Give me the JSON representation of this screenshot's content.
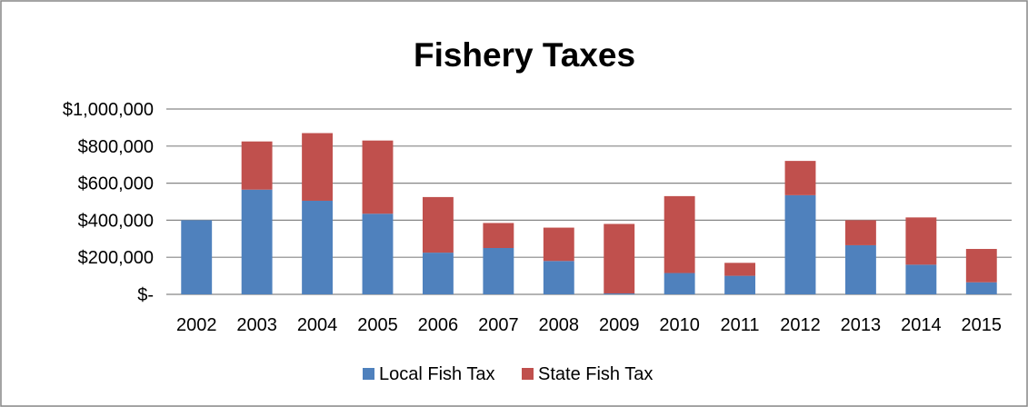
{
  "chart_data": {
    "type": "bar",
    "stacked": true,
    "title": "Fishery Taxes",
    "xlabel": "",
    "ylabel": "",
    "categories": [
      "2002",
      "2003",
      "2004",
      "2005",
      "2006",
      "2007",
      "2008",
      "2009",
      "2010",
      "2011",
      "2012",
      "2013",
      "2014",
      "2015"
    ],
    "series": [
      {
        "name": "Local Fish Tax",
        "color": "#4f81bd",
        "values": [
          400000,
          565000,
          505000,
          435000,
          225000,
          250000,
          180000,
          5000,
          115000,
          100000,
          535000,
          265000,
          160000,
          65000
        ]
      },
      {
        "name": "State Fish Tax",
        "color": "#c0504d",
        "values": [
          0,
          260000,
          365000,
          395000,
          300000,
          135000,
          180000,
          375000,
          415000,
          70000,
          185000,
          135000,
          255000,
          180000
        ]
      }
    ],
    "ylim": [
      0,
      1000000
    ],
    "yticks": [
      0,
      200000,
      400000,
      600000,
      800000,
      1000000
    ],
    "ytick_labels": [
      "$-",
      "$200,000",
      "$400,000",
      "$600,000",
      "$800,000",
      "$1,000,000"
    ],
    "grid": true,
    "legend_position": "bottom",
    "colors": {
      "gridline": "#868686",
      "frame_border": "#868686"
    }
  }
}
